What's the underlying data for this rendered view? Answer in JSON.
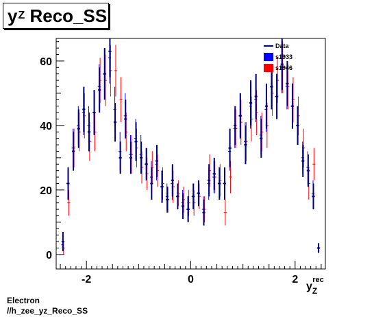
{
  "title": {
    "main": "y",
    "sub": "Z",
    "rest": " Reco_SS"
  },
  "footer": {
    "line1": "Electron",
    "line2": "//h_zee_yz_Reco_SS"
  },
  "colors": {
    "data": "#000080",
    "s1933": "#0000ff",
    "s1946": "#ff0000"
  },
  "chart_data": {
    "type": "scatter",
    "xlabel_main": "y",
    "xlabel_sub": "Z",
    "xlabel_sup": "rec",
    "ylabel": "",
    "xlim": [
      -2.58,
      2.58
    ],
    "ylim": [
      -4.5,
      67
    ],
    "xticks": [
      -2,
      0,
      2
    ],
    "yticks": [
      0,
      20,
      40,
      60
    ],
    "grid": false,
    "legend": {
      "position": "top-right",
      "entries": [
        "Data",
        "s1933",
        "s1946"
      ]
    },
    "bin_halfwidth": 0.05,
    "series": [
      {
        "name": "Data",
        "x": [
          -2.45,
          -2.35,
          -2.25,
          -2.15,
          -2.05,
          -1.95,
          -1.85,
          -1.75,
          -1.65,
          -1.55,
          -1.45,
          -1.35,
          -1.25,
          -1.15,
          -1.05,
          -0.95,
          -0.85,
          -0.75,
          -0.65,
          -0.55,
          -0.45,
          -0.35,
          -0.25,
          -0.15,
          -0.05,
          0.05,
          0.15,
          0.25,
          0.35,
          0.45,
          0.55,
          0.65,
          0.75,
          0.85,
          0.95,
          1.05,
          1.15,
          1.25,
          1.35,
          1.45,
          1.55,
          1.65,
          1.75,
          1.85,
          1.95,
          2.05,
          2.15,
          2.25,
          2.35,
          2.45
        ],
        "y": [
          4,
          22,
          32,
          39,
          45,
          38,
          44,
          51,
          56,
          63,
          41,
          30,
          42,
          30,
          35,
          30,
          28,
          22,
          29,
          21,
          17,
          23,
          18,
          15,
          14,
          18,
          19,
          13,
          23,
          25,
          22,
          22,
          33,
          40,
          43,
          34,
          47,
          49,
          36,
          46,
          52,
          49,
          59,
          53,
          46,
          40,
          29,
          26,
          18,
          2
        ],
        "err": [
          3,
          5,
          6,
          6,
          7,
          6,
          7,
          7,
          8,
          8,
          6,
          5,
          6,
          5,
          6,
          5,
          5,
          5,
          5,
          5,
          4,
          5,
          4,
          4,
          4,
          4,
          4,
          4,
          5,
          5,
          5,
          5,
          6,
          6,
          7,
          6,
          7,
          7,
          6,
          7,
          7,
          7,
          8,
          7,
          7,
          6,
          5,
          5,
          4,
          1.5
        ]
      },
      {
        "name": "s1933",
        "x": [
          -2.45,
          -2.35,
          -2.25,
          -2.15,
          -2.05,
          -1.95,
          -1.85,
          -1.75,
          -1.65,
          -1.55,
          -1.45,
          -1.35,
          -1.25,
          -1.15,
          -1.05,
          -0.95,
          -0.85,
          -0.75,
          -0.65,
          -0.55,
          -0.45,
          -0.35,
          -0.25,
          -0.15,
          -0.05,
          0.05,
          0.15,
          0.25,
          0.35,
          0.45,
          0.55,
          0.65,
          0.75,
          0.85,
          0.95,
          1.05,
          1.15,
          1.25,
          1.35,
          1.45,
          1.55,
          1.65,
          1.75,
          1.85,
          1.95,
          2.05,
          2.15,
          2.25,
          2.35,
          2.45
        ],
        "y": [
          3,
          22,
          33,
          40,
          44,
          40,
          44,
          52,
          56,
          61,
          45,
          32,
          43,
          31,
          36,
          31,
          28,
          24,
          28,
          21,
          18,
          22,
          18,
          16,
          14,
          18,
          19,
          14,
          22,
          24,
          22,
          22,
          32,
          39,
          43,
          35,
          46,
          48,
          37,
          45,
          52,
          49,
          58,
          52,
          46,
          40,
          30,
          27,
          19,
          2
        ],
        "err": [
          2,
          5,
          6,
          6,
          7,
          6,
          7,
          7,
          8,
          8,
          7,
          6,
          7,
          6,
          6,
          6,
          5,
          5,
          5,
          5,
          4,
          5,
          4,
          4,
          4,
          4,
          4,
          4,
          5,
          5,
          5,
          5,
          6,
          6,
          7,
          6,
          7,
          7,
          6,
          7,
          7,
          7,
          8,
          7,
          7,
          6,
          5,
          5,
          4,
          1.5
        ]
      },
      {
        "name": "s1946",
        "x": [
          -2.45,
          -2.35,
          -2.25,
          -2.15,
          -2.05,
          -1.95,
          -1.85,
          -1.75,
          -1.65,
          -1.55,
          -1.45,
          -1.35,
          -1.25,
          -1.15,
          -1.05,
          -0.95,
          -0.85,
          -0.75,
          -0.65,
          -0.55,
          -0.45,
          -0.35,
          -0.25,
          -0.15,
          -0.05,
          0.05,
          0.15,
          0.25,
          0.35,
          0.45,
          0.55,
          0.65,
          0.75,
          0.85,
          0.95,
          1.05,
          1.15,
          1.25,
          1.35,
          1.45,
          1.55,
          1.65,
          1.75,
          1.85,
          1.95,
          2.05,
          2.15,
          2.25,
          2.35,
          2.45
        ],
        "y": [
          2,
          16,
          33,
          38,
          43,
          35,
          38,
          54,
          54,
          57,
          57,
          48,
          38,
          31,
          33,
          27,
          25,
          27,
          26,
          22,
          17,
          21,
          19,
          17,
          16,
          16,
          18,
          14,
          26,
          24,
          23,
          13,
          24,
          39,
          41,
          35,
          42,
          44,
          38,
          40,
          50,
          54,
          58,
          52,
          48,
          43,
          33,
          22,
          28,
          null
        ],
        "err": [
          2,
          4,
          6,
          6,
          7,
          6,
          6,
          7,
          8,
          8,
          8,
          7,
          6,
          6,
          6,
          5,
          5,
          5,
          5,
          5,
          4,
          5,
          4,
          4,
          4,
          4,
          4,
          4,
          5,
          5,
          5,
          4,
          5,
          6,
          7,
          6,
          7,
          7,
          6,
          7,
          7,
          7,
          8,
          7,
          7,
          6,
          6,
          5,
          5,
          0
        ]
      }
    ]
  }
}
